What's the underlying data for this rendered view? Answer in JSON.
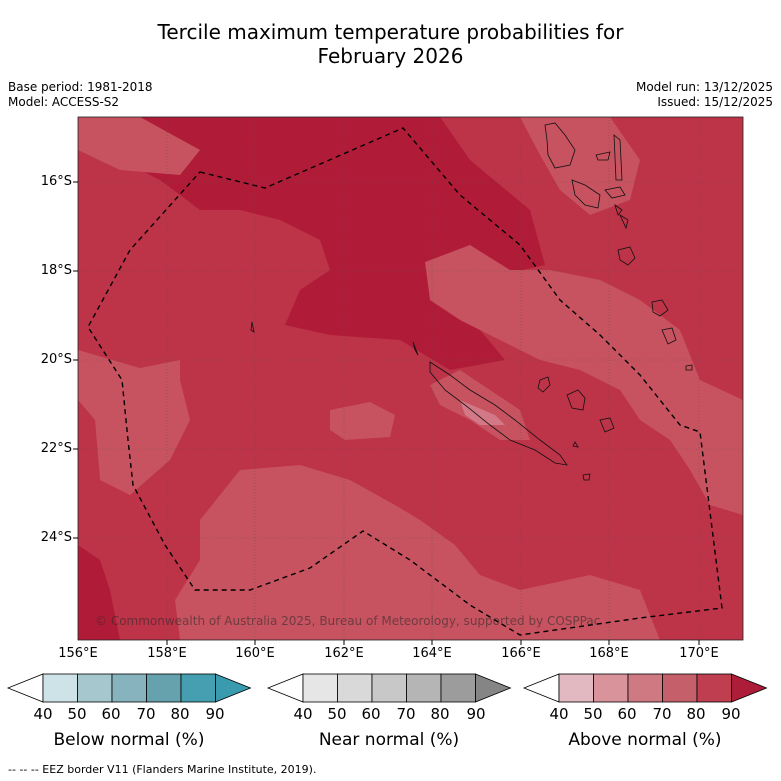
{
  "title_line1": "Tercile maximum temperature probabilities for",
  "title_line2": "February 2026",
  "base_period": "Base period: 1981-2018",
  "model": "Model: ACCESS-S2",
  "model_run": "Model run: 13/12/2025",
  "issued": "Issued: 15/12/2025",
  "lat_labels": [
    "16°S",
    "18°S",
    "20°S",
    "22°S",
    "24°S"
  ],
  "lon_labels": [
    "156°E",
    "158°E",
    "160°E",
    "162°E",
    "164°E",
    "166°E",
    "168°E",
    "170°E"
  ],
  "copyright": "© Commonwealth of Australia 2025, Bureau of Meteorology, supported by COSPPac",
  "colorbars": [
    {
      "title": "Below normal (%)",
      "ticks": [
        "40",
        "50",
        "60",
        "70",
        "80",
        "90"
      ],
      "colors": [
        "#ffffff",
        "#cde3e8",
        "#a6c7cd",
        "#86b3bd",
        "#66a2ae",
        "#459fb0",
        "#3a9aae"
      ]
    },
    {
      "title": "Near normal (%)",
      "ticks": [
        "40",
        "50",
        "60",
        "70",
        "80",
        "90"
      ],
      "colors": [
        "#ffffff",
        "#e6e6e6",
        "#d9d9d9",
        "#c8c8c8",
        "#b5b5b5",
        "#9c9c9c",
        "#858585"
      ]
    },
    {
      "title": "Above normal (%)",
      "ticks": [
        "40",
        "50",
        "60",
        "70",
        "80",
        "90"
      ],
      "colors": [
        "#ffffff",
        "#e2b9c0",
        "#d8939b",
        "#cf7a83",
        "#c5606a",
        "#bf3f50",
        "#ad1d3a"
      ]
    }
  ],
  "footnote": "--  --  -- EEZ border V11 (Flanders Marine Institute, 2019).",
  "map_colors": {
    "base": "#bd3348",
    "light": "#c6535f",
    "dark": "#b01c38",
    "lighter": "#d27886"
  }
}
